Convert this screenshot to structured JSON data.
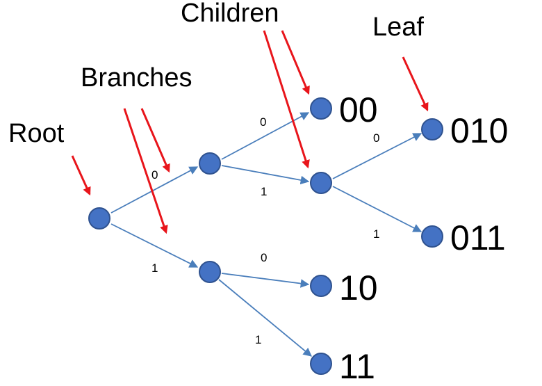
{
  "colors": {
    "node_fill": "#4472C4",
    "node_stroke": "#2F528F",
    "edge": "#4A7EBB",
    "callout_arrow": "#E8151B"
  },
  "callouts": {
    "root": "Root",
    "branches": "Branches",
    "children": "Children",
    "leaf": "Leaf"
  },
  "nodes": {
    "root": "",
    "n0": "",
    "n1": "",
    "n00": "00",
    "n01": "",
    "n10": "10",
    "n11": "11",
    "n010": "010",
    "n011": "011"
  },
  "edges": {
    "root_n0": "0",
    "root_n1": "1",
    "n0_n00": "0",
    "n0_n01": "1",
    "n1_n10": "0",
    "n1_n11": "1",
    "n01_n010": "0",
    "n01_n011": "1"
  }
}
